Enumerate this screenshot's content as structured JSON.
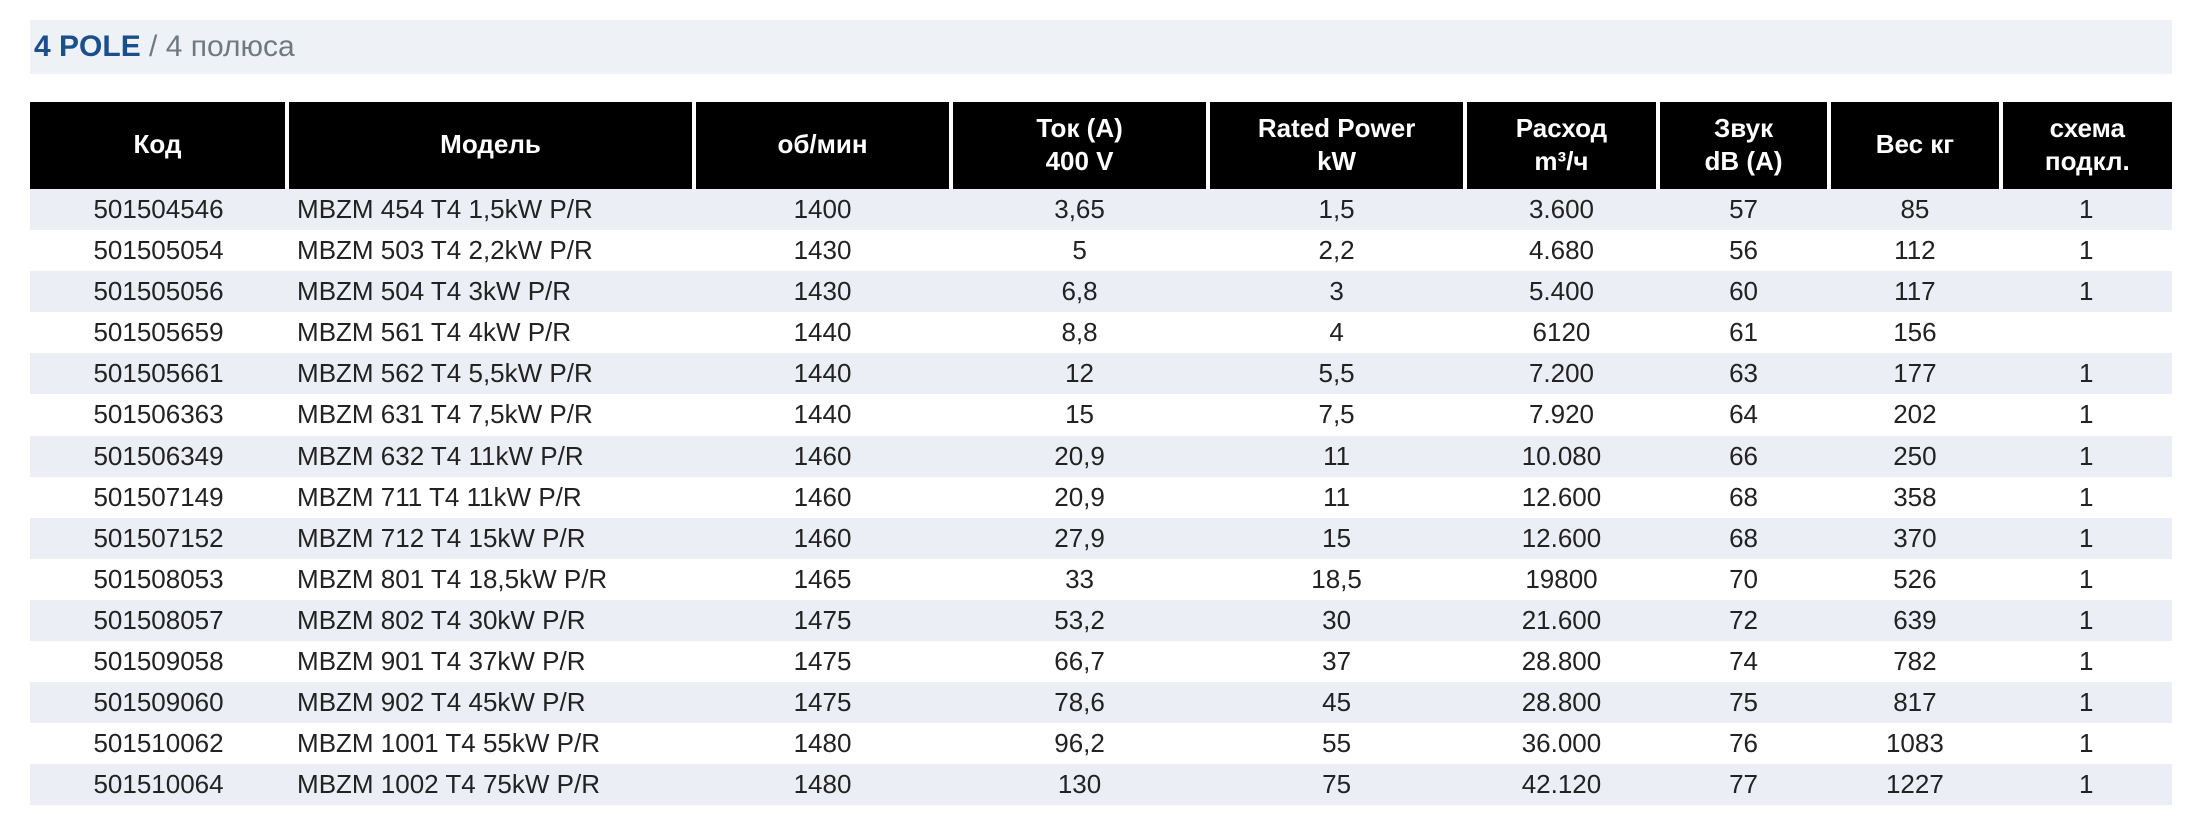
{
  "title": {
    "bold": "4 POLE",
    "sep": " / ",
    "light": "4 полюса"
  },
  "colors": {
    "header_bg": "#000000",
    "header_fg": "#ffffff",
    "row_even": "#ebeef4",
    "row_odd": "#ffffff",
    "title_bg": "#eef2f6",
    "title_bold": "#1a4f8c",
    "title_light": "#707880"
  },
  "columns": [
    {
      "key": "code",
      "label": "Код",
      "label2": "",
      "width": 12,
      "align": "center"
    },
    {
      "key": "model",
      "label": "Модель",
      "label2": "",
      "width": 19,
      "align": "left"
    },
    {
      "key": "rpm",
      "label": "об/мин",
      "label2": "",
      "width": 12,
      "align": "center"
    },
    {
      "key": "amps",
      "label": "Ток  (A)",
      "label2": "400 V",
      "width": 12,
      "align": "center"
    },
    {
      "key": "power",
      "label": "Rated Power",
      "label2": "kW",
      "width": 12,
      "align": "center"
    },
    {
      "key": "flow",
      "label": "Расход",
      "label2": "m³/ч",
      "width": 9,
      "align": "center"
    },
    {
      "key": "noise",
      "label": "Звук",
      "label2": "dB (A)",
      "width": 8,
      "align": "center"
    },
    {
      "key": "weight",
      "label": "Вес кг",
      "label2": "",
      "width": 8,
      "align": "center"
    },
    {
      "key": "scheme",
      "label": "схема",
      "label2": "подкл.",
      "width": 8,
      "align": "center"
    }
  ],
  "rows": [
    {
      "code": "501504546",
      "model": "MBZM 454 T4 1,5kW P/R",
      "rpm": "1400",
      "amps": "3,65",
      "power": "1,5",
      "flow": "3.600",
      "noise": "57",
      "weight": "85",
      "scheme": "1"
    },
    {
      "code": "501505054",
      "model": "MBZM 503 T4 2,2kW P/R",
      "rpm": "1430",
      "amps": "5",
      "power": "2,2",
      "flow": "4.680",
      "noise": "56",
      "weight": "112",
      "scheme": "1"
    },
    {
      "code": "501505056",
      "model": "MBZM 504 T4 3kW P/R",
      "rpm": "1430",
      "amps": "6,8",
      "power": "3",
      "flow": "5.400",
      "noise": "60",
      "weight": "117",
      "scheme": "1"
    },
    {
      "code": "501505659",
      "model": "MBZM 561 T4 4kW P/R",
      "rpm": "1440",
      "amps": "8,8",
      "power": "4",
      "flow": "6120",
      "noise": "61",
      "weight": "156",
      "scheme": ""
    },
    {
      "code": "501505661",
      "model": "MBZM 562 T4 5,5kW P/R",
      "rpm": "1440",
      "amps": "12",
      "power": "5,5",
      "flow": "7.200",
      "noise": "63",
      "weight": "177",
      "scheme": "1"
    },
    {
      "code": "501506363",
      "model": "MBZM 631 T4 7,5kW P/R",
      "rpm": "1440",
      "amps": "15",
      "power": "7,5",
      "flow": "7.920",
      "noise": "64",
      "weight": "202",
      "scheme": "1"
    },
    {
      "code": "501506349",
      "model": "MBZM 632 T4 11kW P/R",
      "rpm": "1460",
      "amps": "20,9",
      "power": "11",
      "flow": "10.080",
      "noise": "66",
      "weight": "250",
      "scheme": "1"
    },
    {
      "code": "501507149",
      "model": "MBZM 711 T4 11kW P/R",
      "rpm": "1460",
      "amps": "20,9",
      "power": "11",
      "flow": "12.600",
      "noise": "68",
      "weight": "358",
      "scheme": "1"
    },
    {
      "code": "501507152",
      "model": "MBZM 712 T4 15kW P/R",
      "rpm": "1460",
      "amps": "27,9",
      "power": "15",
      "flow": "12.600",
      "noise": "68",
      "weight": "370",
      "scheme": "1"
    },
    {
      "code": "501508053",
      "model": "MBZM 801 T4 18,5kW P/R",
      "rpm": "1465",
      "amps": "33",
      "power": "18,5",
      "flow": "19800",
      "noise": "70",
      "weight": "526",
      "scheme": "1"
    },
    {
      "code": "501508057",
      "model": "MBZM 802 T4 30kW P/R",
      "rpm": "1475",
      "amps": "53,2",
      "power": "30",
      "flow": "21.600",
      "noise": "72",
      "weight": "639",
      "scheme": "1"
    },
    {
      "code": "501509058",
      "model": "MBZM 901 T4 37kW P/R",
      "rpm": "1475",
      "amps": "66,7",
      "power": "37",
      "flow": "28.800",
      "noise": "74",
      "weight": "782",
      "scheme": "1"
    },
    {
      "code": "501509060",
      "model": "MBZM 902 T4 45kW P/R",
      "rpm": "1475",
      "amps": "78,6",
      "power": "45",
      "flow": "28.800",
      "noise": "75",
      "weight": "817",
      "scheme": "1"
    },
    {
      "code": "501510062",
      "model": "MBZM 1001 T4 55kW P/R",
      "rpm": "1480",
      "amps": "96,2",
      "power": "55",
      "flow": "36.000",
      "noise": "76",
      "weight": "1083",
      "scheme": "1"
    },
    {
      "code": "501510064",
      "model": "MBZM 1002 T4 75kW P/R",
      "rpm": "1480",
      "amps": "130",
      "power": "75",
      "flow": "42.120",
      "noise": "77",
      "weight": "1227",
      "scheme": "1"
    }
  ]
}
